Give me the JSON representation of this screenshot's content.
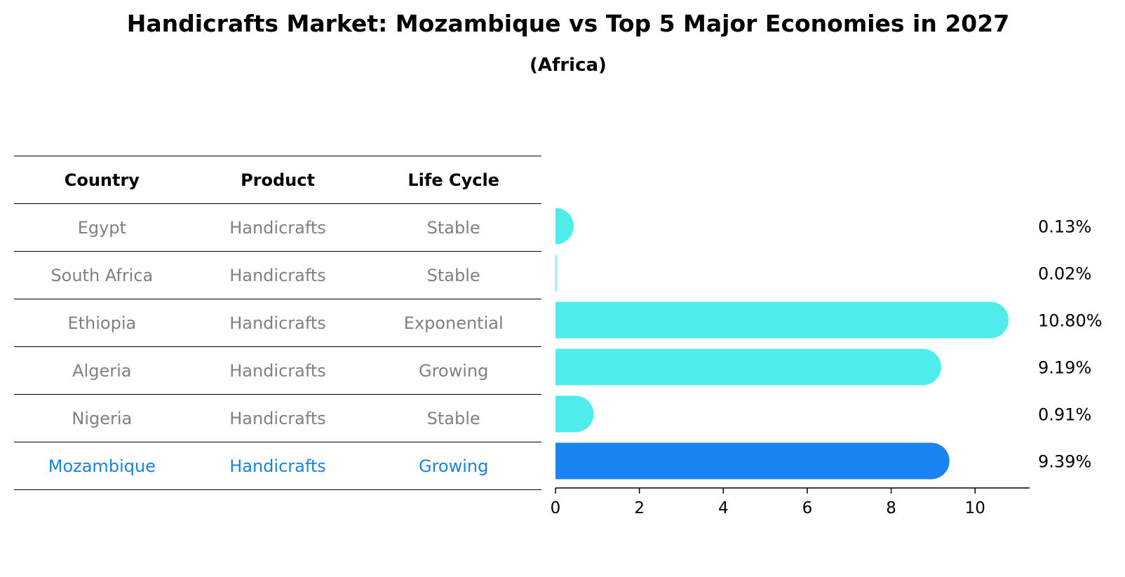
{
  "chart_data": {
    "type": "bar",
    "orientation": "horizontal",
    "title": "Handicrafts Market: Mozambique vs Top 5 Major Economies in 2027",
    "subtitle": "(Africa)",
    "table": {
      "headers": [
        "Country",
        "Product",
        "Life Cycle"
      ],
      "rows": [
        [
          "Egypt",
          "Handicrafts",
          "Stable"
        ],
        [
          "South Africa",
          "Handicrafts",
          "Stable"
        ],
        [
          "Ethiopia",
          "Handicrafts",
          "Exponential"
        ],
        [
          "Algeria",
          "Handicrafts",
          "Growing"
        ],
        [
          "Nigeria",
          "Handicrafts",
          "Stable"
        ],
        [
          "Mozambique",
          "Handicrafts",
          "Growing"
        ]
      ],
      "highlight_row": 5
    },
    "categories": [
      "Egypt",
      "South Africa",
      "Ethiopia",
      "Algeria",
      "Nigeria",
      "Mozambique"
    ],
    "values": [
      0.13,
      0.02,
      10.8,
      9.19,
      0.91,
      9.39
    ],
    "value_labels": [
      "0.13%",
      "0.02%",
      "10.80%",
      "9.19%",
      "0.91%",
      "9.39%"
    ],
    "xlim": [
      0,
      11.3
    ],
    "xticks": [
      0,
      2,
      4,
      6,
      8,
      10
    ],
    "grid": false,
    "colors": {
      "bar": "#4eeceb",
      "highlight": "#1a84f2",
      "table_text": "#808080",
      "table_highlight": "#1a82e0"
    }
  }
}
